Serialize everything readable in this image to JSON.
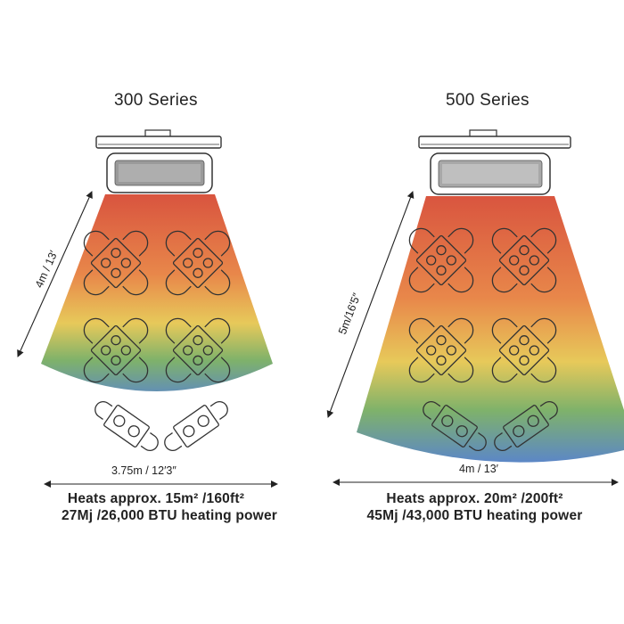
{
  "colors": {
    "heat_red": "#d9553f",
    "heat_orange": "#e8874a",
    "heat_yellow": "#e7c95a",
    "heat_green": "#7fb26a",
    "heat_blue": "#5b86c9",
    "line": "#333333"
  },
  "series_300": {
    "title": "300 Series",
    "height_label": "4m / 13′",
    "width_label": "3.75m / 12′3″",
    "area_line": "Heats approx. 15m²  /160ft²",
    "power_line": "27Mj /26,000 BTU heating power"
  },
  "series_500": {
    "title": "500 Series",
    "height_label": "5m/16′5″",
    "width_label": "4m / 13′",
    "area_line": "Heats approx. 20m² /200ft²",
    "power_line": "45Mj /43,000 BTU heating power"
  }
}
